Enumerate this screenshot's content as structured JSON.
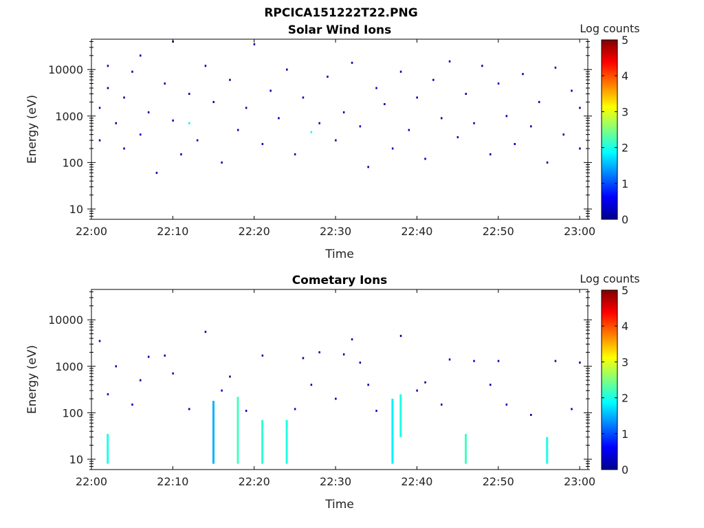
{
  "figure": {
    "title": "RPCICA151222T22.PNG"
  },
  "colorbar": {
    "label": "Log counts",
    "ticks": [
      "0",
      "1",
      "2",
      "3",
      "4",
      "5"
    ]
  },
  "chart_data": [
    {
      "type": "heatmap",
      "title": "Solar Wind Ions",
      "xlabel": "Time",
      "ylabel": "Energy (eV)",
      "x_ticks": [
        "22:00",
        "22:10",
        "22:20",
        "22:30",
        "22:40",
        "22:50",
        "23:00"
      ],
      "xlim": [
        "22:00",
        "23:01"
      ],
      "y_scale": "log",
      "y_ticks": [
        "10",
        "100",
        "1000",
        "10000"
      ],
      "ylim": [
        6,
        45000
      ],
      "colorscale": "jet",
      "zlim": [
        0,
        5
      ],
      "points": [
        [
          "22:01",
          300,
          0.2
        ],
        [
          "22:01",
          1500,
          0.3
        ],
        [
          "22:02",
          4000,
          0.1
        ],
        [
          "22:02",
          12000,
          0.3
        ],
        [
          "22:03",
          700,
          0.2
        ],
        [
          "22:04",
          2500,
          0.2
        ],
        [
          "22:04",
          200,
          0.3
        ],
        [
          "22:05",
          9000,
          0.1
        ],
        [
          "22:06",
          400,
          0.4
        ],
        [
          "22:06",
          20000,
          0.2
        ],
        [
          "22:07",
          1200,
          0.2
        ],
        [
          "22:08",
          60,
          0.3
        ],
        [
          "22:09",
          5000,
          0.2
        ],
        [
          "22:10",
          40000,
          0.2
        ],
        [
          "22:10",
          800,
          0.3
        ],
        [
          "22:11",
          150,
          0.2
        ],
        [
          "22:12",
          700,
          1.8
        ],
        [
          "22:12",
          3000,
          0.2
        ],
        [
          "22:13",
          300,
          0.3
        ],
        [
          "22:14",
          12000,
          0.2
        ],
        [
          "22:15",
          2000,
          0.3
        ],
        [
          "22:16",
          100,
          0.2
        ],
        [
          "22:17",
          6000,
          0.2
        ],
        [
          "22:18",
          500,
          0.3
        ],
        [
          "22:19",
          1500,
          0.2
        ],
        [
          "22:20",
          35000,
          0.2
        ],
        [
          "22:21",
          250,
          0.3
        ],
        [
          "22:22",
          3500,
          0.2
        ],
        [
          "22:23",
          900,
          0.3
        ],
        [
          "22:24",
          10000,
          0.2
        ],
        [
          "22:25",
          150,
          0.2
        ],
        [
          "22:26",
          2500,
          0.3
        ],
        [
          "22:27",
          450,
          1.9
        ],
        [
          "22:28",
          700,
          0.3
        ],
        [
          "22:29",
          7000,
          0.2
        ],
        [
          "22:30",
          300,
          0.3
        ],
        [
          "22:31",
          1200,
          0.2
        ],
        [
          "22:32",
          14000,
          0.2
        ],
        [
          "22:33",
          600,
          0.3
        ],
        [
          "22:34",
          80,
          0.2
        ],
        [
          "22:35",
          4000,
          0.3
        ],
        [
          "22:36",
          1800,
          0.2
        ],
        [
          "22:37",
          200,
          0.3
        ],
        [
          "22:38",
          9000,
          0.2
        ],
        [
          "22:39",
          500,
          0.3
        ],
        [
          "22:40",
          2500,
          0.2
        ],
        [
          "22:41",
          120,
          0.3
        ],
        [
          "22:42",
          6000,
          0.2
        ],
        [
          "22:43",
          900,
          0.2
        ],
        [
          "22:44",
          15000,
          0.2
        ],
        [
          "22:45",
          350,
          0.3
        ],
        [
          "22:46",
          3000,
          0.2
        ],
        [
          "22:47",
          700,
          0.3
        ],
        [
          "22:48",
          12000,
          0.2
        ],
        [
          "22:49",
          150,
          0.2
        ],
        [
          "22:50",
          5000,
          0.3
        ],
        [
          "22:51",
          1000,
          0.2
        ],
        [
          "22:52",
          250,
          0.3
        ],
        [
          "22:53",
          8000,
          0.2
        ],
        [
          "22:54",
          600,
          0.2
        ],
        [
          "22:55",
          2000,
          0.3
        ],
        [
          "22:56",
          100,
          0.2
        ],
        [
          "22:57",
          11000,
          0.2
        ],
        [
          "22:58",
          400,
          0.3
        ],
        [
          "22:59",
          3500,
          0.2
        ],
        [
          "23:00",
          1500,
          0.3
        ],
        [
          "23:00",
          200,
          0.2
        ]
      ]
    },
    {
      "type": "heatmap",
      "title": "Cometary Ions",
      "xlabel": "Time",
      "ylabel": "Energy (eV)",
      "x_ticks": [
        "22:00",
        "22:10",
        "22:20",
        "22:30",
        "22:40",
        "22:50",
        "23:00"
      ],
      "xlim": [
        "22:00",
        "23:01"
      ],
      "y_scale": "log",
      "y_ticks": [
        "10",
        "100",
        "1000",
        "10000"
      ],
      "ylim": [
        6,
        45000
      ],
      "colorscale": "jet",
      "zlim": [
        0,
        5
      ],
      "bursts": [
        {
          "time": "22:02",
          "emin": 8,
          "emax": 35,
          "peak": 2.0
        },
        {
          "time": "22:15",
          "emin": 8,
          "emax": 180,
          "peak": 1.5
        },
        {
          "time": "22:18",
          "emin": 8,
          "emax": 220,
          "peak": 2.2
        },
        {
          "time": "22:21",
          "emin": 8,
          "emax": 70,
          "peak": 2.1
        },
        {
          "time": "22:24",
          "emin": 8,
          "emax": 70,
          "peak": 2.0
        },
        {
          "time": "22:37",
          "emin": 8,
          "emax": 200,
          "peak": 1.8
        },
        {
          "time": "22:38",
          "emin": 30,
          "emax": 250,
          "peak": 2.0
        },
        {
          "time": "22:46",
          "emin": 8,
          "emax": 35,
          "peak": 2.2
        },
        {
          "time": "22:56",
          "emin": 8,
          "emax": 30,
          "peak": 2.0
        }
      ],
      "points": [
        [
          "22:01",
          3500,
          0.3
        ],
        [
          "22:02",
          250,
          0.4
        ],
        [
          "22:03",
          1000,
          0.2
        ],
        [
          "22:05",
          150,
          0.3
        ],
        [
          "22:06",
          500,
          0.2
        ],
        [
          "22:07",
          1600,
          0.2
        ],
        [
          "22:09",
          1700,
          0.2
        ],
        [
          "22:10",
          700,
          0.3
        ],
        [
          "22:12",
          120,
          0.2
        ],
        [
          "22:14",
          5500,
          0.2
        ],
        [
          "22:16",
          300,
          0.3
        ],
        [
          "22:17",
          600,
          0.2
        ],
        [
          "22:19",
          110,
          0.3
        ],
        [
          "22:21",
          1700,
          0.2
        ],
        [
          "22:25",
          120,
          0.3
        ],
        [
          "22:26",
          1500,
          0.2
        ],
        [
          "22:27",
          400,
          0.3
        ],
        [
          "22:28",
          2000,
          0.2
        ],
        [
          "22:30",
          200,
          0.3
        ],
        [
          "22:31",
          1800,
          0.2
        ],
        [
          "22:32",
          3800,
          0.2
        ],
        [
          "22:33",
          1200,
          0.2
        ],
        [
          "22:34",
          400,
          0.3
        ],
        [
          "22:35",
          110,
          0.3
        ],
        [
          "22:38",
          4500,
          0.2
        ],
        [
          "22:40",
          300,
          0.3
        ],
        [
          "22:41",
          450,
          0.2
        ],
        [
          "22:43",
          150,
          0.3
        ],
        [
          "22:44",
          1400,
          0.3
        ],
        [
          "22:47",
          1300,
          0.4
        ],
        [
          "22:49",
          400,
          0.2
        ],
        [
          "22:50",
          1300,
          0.2
        ],
        [
          "22:51",
          150,
          0.3
        ],
        [
          "22:54",
          90,
          0.2
        ],
        [
          "22:57",
          1300,
          0.3
        ],
        [
          "22:59",
          120,
          0.2
        ],
        [
          "23:00",
          1200,
          0.2
        ]
      ]
    }
  ]
}
